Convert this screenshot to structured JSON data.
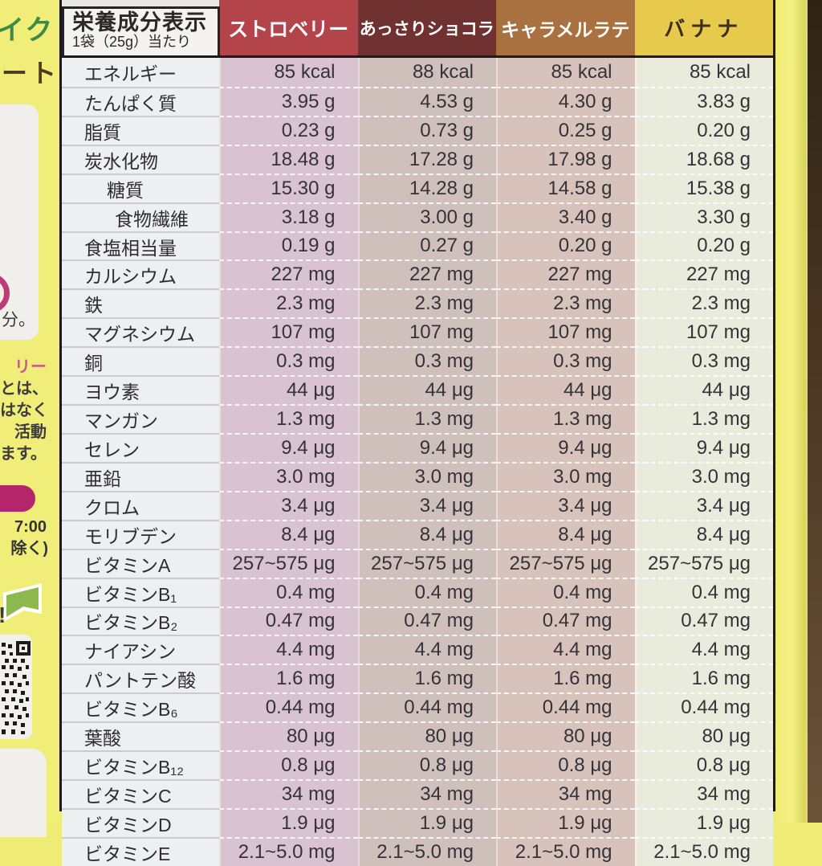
{
  "left_strip": {
    "top_text_green": "イク",
    "top_text_brown": "ート",
    "box1_text": "分。",
    "paragraph_lines": [
      {
        "text": "リー",
        "highlight": true
      },
      {
        "text": "とは、",
        "highlight": false
      },
      {
        "text": "はなく",
        "highlight": false
      },
      {
        "text": "活動",
        "highlight": false
      },
      {
        "text": "ます。",
        "highlight": false
      }
    ],
    "time_text": "7:00",
    "exclude_text": "除く)",
    "exclamation_text": "!"
  },
  "table": {
    "title": "栄養成分表示",
    "subtitle": "1袋（25g）当たり",
    "columns": [
      {
        "label": "ストロベリー",
        "header_bg": "#b3444a",
        "body_bg": "#d9c3d0",
        "header_text_color": "#ffffff"
      },
      {
        "label": "あっさりショコラ",
        "header_bg": "#703131",
        "body_bg": "#cfc0bc",
        "header_text_color": "#ffffff"
      },
      {
        "label": "キャラメルラテ",
        "header_bg": "#a9713f",
        "body_bg": "#d7c3bb",
        "header_text_color": "#ffffff"
      },
      {
        "label": "バナナ",
        "header_bg": "#e7c94b",
        "body_bg": "#e9ecdd",
        "header_text_color": "#39301d"
      }
    ],
    "rows": [
      {
        "label": "エネルギー",
        "indent": 0,
        "values": [
          "85 kcal",
          "88 kcal",
          "85 kcal",
          "85 kcal"
        ]
      },
      {
        "label": "たんぱく質",
        "indent": 0,
        "values": [
          "3.95 g",
          "4.53 g",
          "4.30 g",
          "3.83 g"
        ]
      },
      {
        "label": "脂質",
        "indent": 0,
        "values": [
          "0.23 g",
          "0.73 g",
          "0.25 g",
          "0.20 g"
        ]
      },
      {
        "label": "炭水化物",
        "indent": 0,
        "values": [
          "18.48 g",
          "17.28 g",
          "17.98 g",
          "18.68 g"
        ]
      },
      {
        "label": "糖質",
        "indent": 1,
        "values": [
          "15.30 g",
          "14.28 g",
          "14.58 g",
          "15.38 g"
        ]
      },
      {
        "label": "食物繊維",
        "indent": 2,
        "values": [
          "3.18 g",
          "3.00 g",
          "3.40 g",
          "3.30 g"
        ]
      },
      {
        "label": "食塩相当量",
        "indent": 0,
        "values": [
          "0.19 g",
          "0.27 g",
          "0.20 g",
          "0.20 g"
        ]
      },
      {
        "label": "カルシウム",
        "indent": 0,
        "values": [
          "227 mg",
          "227 mg",
          "227 mg",
          "227 mg"
        ]
      },
      {
        "label": "鉄",
        "indent": 0,
        "values": [
          "2.3 mg",
          "2.3 mg",
          "2.3 mg",
          "2.3 mg"
        ]
      },
      {
        "label": "マグネシウム",
        "indent": 0,
        "values": [
          "107 mg",
          "107 mg",
          "107 mg",
          "107 mg"
        ]
      },
      {
        "label": "銅",
        "indent": 0,
        "values": [
          "0.3 mg",
          "0.3 mg",
          "0.3 mg",
          "0.3 mg"
        ]
      },
      {
        "label": "ヨウ素",
        "indent": 0,
        "values": [
          "44 μg",
          "44 μg",
          "44 μg",
          "44 μg"
        ]
      },
      {
        "label": "マンガン",
        "indent": 0,
        "values": [
          "1.3 mg",
          "1.3 mg",
          "1.3 mg",
          "1.3 mg"
        ]
      },
      {
        "label": "セレン",
        "indent": 0,
        "values": [
          "9.4 μg",
          "9.4 μg",
          "9.4 μg",
          "9.4 μg"
        ]
      },
      {
        "label": "亜鉛",
        "indent": 0,
        "values": [
          "3.0 mg",
          "3.0 mg",
          "3.0 mg",
          "3.0 mg"
        ]
      },
      {
        "label": "クロム",
        "indent": 0,
        "values": [
          "3.4 μg",
          "3.4 μg",
          "3.4 μg",
          "3.4 μg"
        ]
      },
      {
        "label": "モリブデン",
        "indent": 0,
        "values": [
          "8.4 μg",
          "8.4 μg",
          "8.4 μg",
          "8.4 μg"
        ]
      },
      {
        "label": "ビタミンA",
        "indent": 0,
        "values": [
          "257~575 μg",
          "257~575 μg",
          "257~575 μg",
          "257~575 μg"
        ]
      },
      {
        "label": "ビタミンB₁",
        "indent": 0,
        "values": [
          "0.4 mg",
          "0.4 mg",
          "0.4 mg",
          "0.4 mg"
        ]
      },
      {
        "label": "ビタミンB₂",
        "indent": 0,
        "values": [
          "0.47 mg",
          "0.47 mg",
          "0.47 mg",
          "0.47 mg"
        ]
      },
      {
        "label": "ナイアシン",
        "indent": 0,
        "values": [
          "4.4 mg",
          "4.4 mg",
          "4.4 mg",
          "4.4 mg"
        ]
      },
      {
        "label": "パントテン酸",
        "indent": 0,
        "values": [
          "1.6 mg",
          "1.6 mg",
          "1.6 mg",
          "1.6 mg"
        ]
      },
      {
        "label": "ビタミンB₆",
        "indent": 0,
        "values": [
          "0.44 mg",
          "0.44 mg",
          "0.44 mg",
          "0.44 mg"
        ]
      },
      {
        "label": "葉酸",
        "indent": 0,
        "values": [
          "80 μg",
          "80 μg",
          "80 μg",
          "80 μg"
        ]
      },
      {
        "label": "ビタミンB₁₂",
        "indent": 0,
        "values": [
          "0.8 μg",
          "0.8 μg",
          "0.8 μg",
          "0.8 μg"
        ]
      },
      {
        "label": "ビタミンC",
        "indent": 0,
        "values": [
          "34 mg",
          "34 mg",
          "34 mg",
          "34 mg"
        ]
      },
      {
        "label": "ビタミンD",
        "indent": 0,
        "values": [
          "1.9 μg",
          "1.9 μg",
          "1.9 μg",
          "1.9 μg"
        ]
      },
      {
        "label": "ビタミンE",
        "indent": 0,
        "values": [
          "2.1~5.0 mg",
          "2.1~5.0 mg",
          "2.1~5.0 mg",
          "2.1~5.0 mg"
        ]
      }
    ]
  },
  "colors": {
    "package_yellow": "#efec76",
    "table_border": "#1b1b1b",
    "label_column_bg": "#edeff0",
    "text_dark": "#34323a",
    "accent_magenta": "#b5256b",
    "accent_green": "#8cb84e",
    "photo_edge_brown": "#4a3723"
  }
}
